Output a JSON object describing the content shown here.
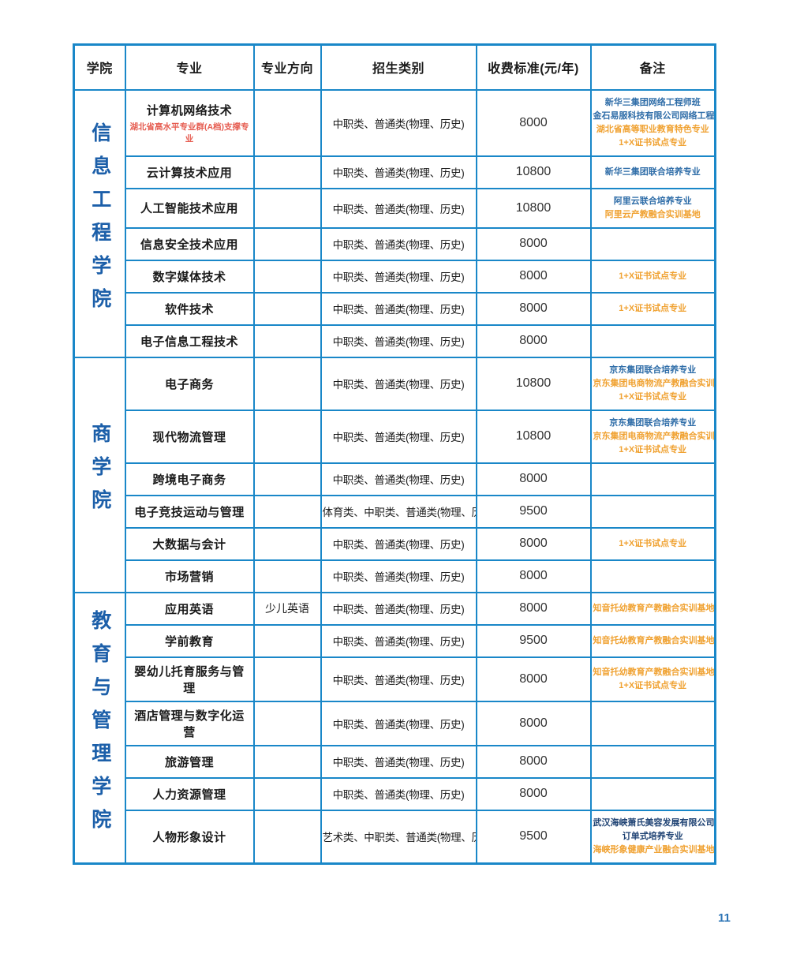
{
  "page": {
    "number": "11"
  },
  "colors": {
    "table_border": "#1987c8",
    "college_text": "#1c5fa9",
    "remark_blue": "#2f6da8",
    "remark_orange": "#f0a232",
    "remark_navy": "#1e4273",
    "major_note_red": "#e65c50",
    "page_number_blue": "#2e75b6"
  },
  "table": {
    "headers": [
      "学院",
      "专业",
      "专业方向",
      "招生类别",
      "收费标准(元/年)",
      "备注"
    ],
    "groups": [
      {
        "college": "信息工程学院",
        "rows": [
          {
            "major": "计算机网络技术",
            "major_note": "湖北省高水平专业群(A档)支撑专业",
            "direction": "",
            "category": "中职类、普通类(物理、历史)",
            "fee": "8000",
            "remarks": [
              {
                "text": "新华三集团网络工程师班",
                "color": "blue"
              },
              {
                "text": "金石易服科技有限公司网络工程师订单班",
                "color": "blue"
              },
              {
                "text": "湖北省高等职业教育特色专业",
                "color": "orange"
              },
              {
                "text": "1+X证书试点专业",
                "color": "orange"
              }
            ]
          },
          {
            "major": "云计算技术应用",
            "major_note": "",
            "direction": "",
            "category": "中职类、普通类(物理、历史)",
            "fee": "10800",
            "remarks": [
              {
                "text": "新华三集团联合培养专业",
                "color": "blue"
              }
            ]
          },
          {
            "major": "人工智能技术应用",
            "major_note": "",
            "direction": "",
            "category": "中职类、普通类(物理、历史)",
            "fee": "10800",
            "remarks": [
              {
                "text": "阿里云联合培养专业",
                "color": "blue"
              },
              {
                "text": "阿里云产教融合实训基地",
                "color": "orange"
              }
            ]
          },
          {
            "major": "信息安全技术应用",
            "major_note": "",
            "direction": "",
            "category": "中职类、普通类(物理、历史)",
            "fee": "8000",
            "remarks": []
          },
          {
            "major": "数字媒体技术",
            "major_note": "",
            "direction": "",
            "category": "中职类、普通类(物理、历史)",
            "fee": "8000",
            "remarks": [
              {
                "text": "1+X证书试点专业",
                "color": "orange"
              }
            ]
          },
          {
            "major": "软件技术",
            "major_note": "",
            "direction": "",
            "category": "中职类、普通类(物理、历史)",
            "fee": "8000",
            "remarks": [
              {
                "text": "1+X证书试点专业",
                "color": "orange"
              }
            ]
          },
          {
            "major": "电子信息工程技术",
            "major_note": "",
            "direction": "",
            "category": "中职类、普通类(物理、历史)",
            "fee": "8000",
            "remarks": []
          }
        ]
      },
      {
        "college": "商学院",
        "rows": [
          {
            "major": "电子商务",
            "major_note": "",
            "direction": "",
            "category": "中职类、普通类(物理、历史)",
            "fee": "10800",
            "remarks": [
              {
                "text": "京东集团联合培养专业",
                "color": "blue"
              },
              {
                "text": "京东集团电商物流产教融合实训基地",
                "color": "orange"
              },
              {
                "text": "1+X证书试点专业",
                "color": "orange"
              }
            ]
          },
          {
            "major": "现代物流管理",
            "major_note": "",
            "direction": "",
            "category": "中职类、普通类(物理、历史)",
            "fee": "10800",
            "remarks": [
              {
                "text": "京东集团联合培养专业",
                "color": "blue"
              },
              {
                "text": "京东集团电商物流产教融合实训基地",
                "color": "orange"
              },
              {
                "text": "1+X证书试点专业",
                "color": "orange"
              }
            ]
          },
          {
            "major": "跨境电子商务",
            "major_note": "",
            "direction": "",
            "category": "中职类、普通类(物理、历史)",
            "fee": "8000",
            "remarks": []
          },
          {
            "major": "电子竞技运动与管理",
            "major_note": "",
            "direction": "",
            "category": "体育类、中职类、普通类(物理、历史)",
            "fee": "9500",
            "remarks": []
          },
          {
            "major": "大数据与会计",
            "major_note": "",
            "direction": "",
            "category": "中职类、普通类(物理、历史)",
            "fee": "8000",
            "remarks": [
              {
                "text": "1+X证书试点专业",
                "color": "orange"
              }
            ]
          },
          {
            "major": "市场营销",
            "major_note": "",
            "direction": "",
            "category": "中职类、普通类(物理、历史)",
            "fee": "8000",
            "remarks": []
          }
        ]
      },
      {
        "college": "教育与管理学院",
        "rows": [
          {
            "major": "应用英语",
            "major_note": "",
            "direction": "少儿英语",
            "category": "中职类、普通类(物理、历史)",
            "fee": "8000",
            "remarks": [
              {
                "text": "知音托幼教育产教融合实训基地",
                "color": "orange"
              }
            ]
          },
          {
            "major": "学前教育",
            "major_note": "",
            "direction": "",
            "category": "中职类、普通类(物理、历史)",
            "fee": "9500",
            "remarks": [
              {
                "text": "知音托幼教育产教融合实训基地",
                "color": "orange"
              }
            ]
          },
          {
            "major": "婴幼儿托育服务与管理",
            "major_note": "",
            "direction": "",
            "category": "中职类、普通类(物理、历史)",
            "fee": "8000",
            "remarks": [
              {
                "text": "知音托幼教育产教融合实训基地",
                "color": "orange"
              },
              {
                "text": "1+X证书试点专业",
                "color": "orange"
              }
            ]
          },
          {
            "major": "酒店管理与数字化运营",
            "major_note": "",
            "direction": "",
            "category": "中职类、普通类(物理、历史)",
            "fee": "8000",
            "remarks": []
          },
          {
            "major": "旅游管理",
            "major_note": "",
            "direction": "",
            "category": "中职类、普通类(物理、历史)",
            "fee": "8000",
            "remarks": []
          },
          {
            "major": "人力资源管理",
            "major_note": "",
            "direction": "",
            "category": "中职类、普通类(物理、历史)",
            "fee": "8000",
            "remarks": []
          },
          {
            "major": "人物形象设计",
            "major_note": "",
            "direction": "",
            "category": "艺术类、中职类、普通类(物理、历史)",
            "fee": "9500",
            "remarks": [
              {
                "text": "武汉海峡萧氏美容发展有限公司",
                "color": "navy"
              },
              {
                "text": "订单式培养专业",
                "color": "navy"
              },
              {
                "text": "海峡形象健康产业融合实训基地",
                "color": "orange"
              }
            ]
          }
        ]
      }
    ]
  }
}
